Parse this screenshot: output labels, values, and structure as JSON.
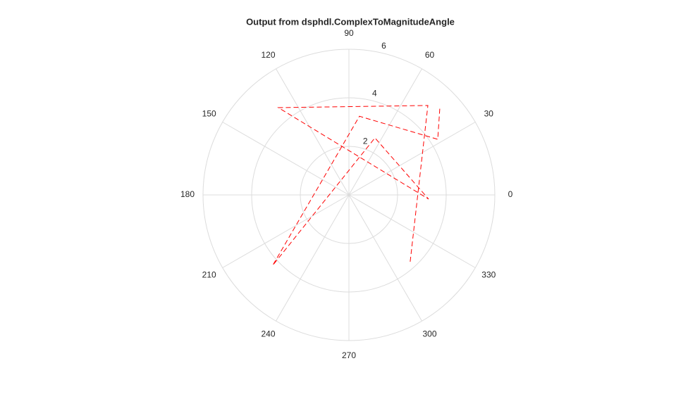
{
  "chart_data": {
    "type": "polar",
    "title": "Output from dsphdl.ComplexToMagnitudeAngle",
    "theta": [
      312.5,
      48.6,
      128.9,
      357,
      65.5,
      222.8,
      82.4,
      32.1,
      43.9
    ],
    "r": [
      3.73,
      4.91,
      4.62,
      3.28,
      2.58,
      4.27,
      3.27,
      4.31,
      5.19
    ],
    "color": "#ff0000",
    "linestyle": "dashed",
    "rlim": [
      0,
      6
    ],
    "rticks": [
      2,
      4,
      6
    ],
    "thetaticks": [
      0,
      30,
      60,
      90,
      120,
      150,
      180,
      210,
      240,
      270,
      300,
      330
    ],
    "grid": true
  }
}
